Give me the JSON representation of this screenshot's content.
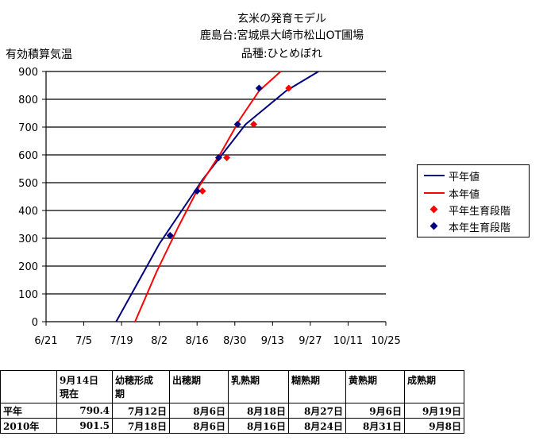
{
  "chart_data": {
    "type": "line",
    "title_lines": [
      "玄米の発育モデル",
      "鹿島台:宮城県大崎市松山OT圃場",
      "品種:ひとめぼれ"
    ],
    "ylabel": "有効積算気温",
    "ylim": [
      0,
      900
    ],
    "yticks": [
      0,
      100,
      200,
      300,
      400,
      500,
      600,
      700,
      800,
      900
    ],
    "xticks": [
      "6/21",
      "7/5",
      "7/19",
      "8/2",
      "8/16",
      "8/30",
      "9/13",
      "9/27",
      "10/11",
      "10/25"
    ],
    "grid": "horizontal",
    "legend_position": "right",
    "series": [
      {
        "name": "平年値",
        "kind": "line",
        "color": "#000080",
        "x": [
          "7/17",
          "8/2",
          "8/18",
          "9/3",
          "9/18",
          "9/30"
        ],
        "values": [
          0,
          280,
          510,
          710,
          830,
          900
        ]
      },
      {
        "name": "本年値",
        "kind": "line",
        "color": "#ff0000",
        "x": [
          "7/24",
          "8/1",
          "8/9",
          "8/17",
          "8/25",
          "9/1",
          "9/8",
          "9/16"
        ],
        "values": [
          0,
          180,
          340,
          490,
          610,
          730,
          830,
          900
        ]
      },
      {
        "name": "平年生育段階",
        "kind": "marker",
        "color": "#ff0000",
        "x": [
          "8/6",
          "8/18",
          "8/27",
          "9/6",
          "9/19"
        ],
        "values": [
          310,
          470,
          590,
          710,
          840
        ]
      },
      {
        "name": "本年生育段階",
        "kind": "marker",
        "color": "#000080",
        "x": [
          "8/6",
          "8/16",
          "8/24",
          "8/31",
          "9/8"
        ],
        "values": [
          310,
          470,
          590,
          710,
          840
        ]
      }
    ]
  },
  "table": {
    "headers": [
      "",
      "9月14日\n現在",
      "幼穂形成\n期",
      "出穂期",
      "乳熟期",
      "糊熟期",
      "黄熟期",
      "成熟期"
    ],
    "rows": [
      [
        "平年",
        "790.4",
        "7月12日",
        "8月6日",
        "8月18日",
        "8月27日",
        "9月6日",
        "9月19日"
      ],
      [
        "2010年",
        "901.5",
        "7月18日",
        "8月6日",
        "8月16日",
        "8月24日",
        "8月31日",
        "9月8日"
      ]
    ]
  }
}
